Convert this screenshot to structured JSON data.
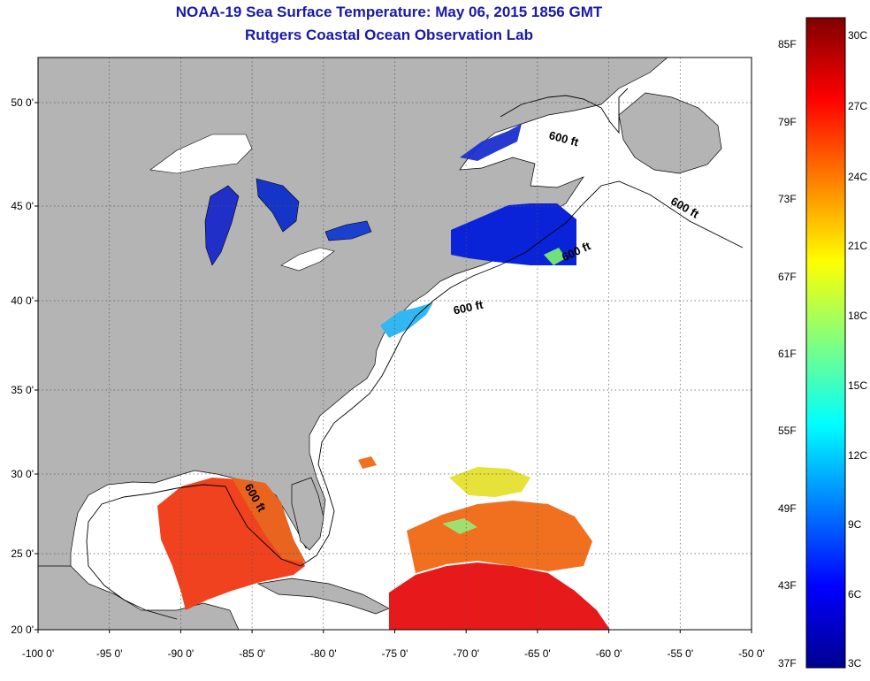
{
  "header": {
    "title": "NOAA-19 Sea Surface Temperature:  May 06, 2015 1856 GMT",
    "subtitle": "Rutgers Coastal Ocean Observation Lab"
  },
  "map": {
    "lat_labels": [
      "50 0'",
      "45 0'",
      "40 0'",
      "35 0'",
      "30 0'",
      "25 0'",
      "20 0'"
    ],
    "lat_values": [
      50,
      45,
      40,
      35,
      30,
      25,
      20
    ],
    "lon_labels": [
      "-100 0'",
      "-95 0'",
      "-90 0'",
      "-85 0'",
      "-80 0'",
      "-75 0'",
      "-70 0'",
      "-65 0'",
      "-60 0'",
      "-55 0'",
      "-50 0'"
    ],
    "lon_values": [
      -100,
      -95,
      -90,
      -85,
      -80,
      -75,
      -70,
      -65,
      -60,
      -55,
      -50
    ],
    "isobath_label": "600 ft",
    "colors": {
      "land": "#b4b4b4",
      "no_data": "#ffffff"
    }
  },
  "colorbar": {
    "f_labels": [
      "85F",
      "79F",
      "73F",
      "67F",
      "61F",
      "55F",
      "49F",
      "43F",
      "37F"
    ],
    "c_labels": [
      "30C",
      "27C",
      "24C",
      "21C",
      "18C",
      "15C",
      "12C",
      "9C",
      "6C",
      "3C"
    ],
    "colors": [
      "#7f0000",
      "#ff0000",
      "#ff7f00",
      "#ffff00",
      "#7fff7f",
      "#00ffff",
      "#007fff",
      "#0000ff",
      "#00008f"
    ]
  }
}
